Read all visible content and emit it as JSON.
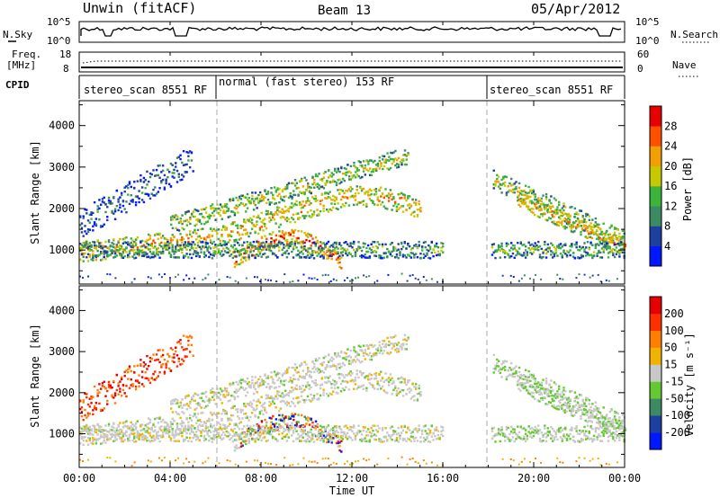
{
  "chart_data": [
    {
      "type": "header",
      "title": "Unwin (fitACF)",
      "beam": "Beam 13",
      "date": "05/Apr/2012"
    },
    {
      "type": "line",
      "panel": "noise",
      "left_label": "N.Sky",
      "right_label": "N.Search",
      "left_ticks": [
        "10^5",
        "10^0"
      ],
      "right_ticks": [
        "10^5",
        "10^0"
      ]
    },
    {
      "type": "line",
      "panel": "freq-nave",
      "left_label_line1": "Freq.",
      "left_label_line2": "[MHz]",
      "right_label": "Nave",
      "left_ticks": [
        "18",
        "8"
      ],
      "right_ticks": [
        "60",
        "0"
      ]
    },
    {
      "type": "annotation",
      "panel": "cpid",
      "label": "CPID",
      "segments": [
        {
          "text": "stereo_scan 8551 RF",
          "start_hour": 0,
          "end_hour": 6
        },
        {
          "text": "normal (fast stereo) 153 RF",
          "start_hour": 6,
          "end_hour": 18
        },
        {
          "text": "stereo_scan 8551 RF",
          "start_hour": 18,
          "end_hour": 24
        }
      ]
    },
    {
      "type": "heatmap",
      "panel": "power",
      "ylabel": "Slant Range [km]",
      "ylim": [
        180,
        4600
      ],
      "yticks": [
        "1000",
        "2000",
        "3000",
        "4000"
      ],
      "xlim": [
        0,
        24
      ],
      "colorbar_label": "Power [dB]",
      "colorbar_ticks": [
        "4",
        "8",
        "12",
        "16",
        "20",
        "24",
        "28"
      ],
      "colors": [
        "#0018ff",
        "#1f3fa0",
        "#3c8a64",
        "#3cb43c",
        "#c8c800",
        "#f0a000",
        "#ff5000",
        "#e60000"
      ]
    },
    {
      "type": "heatmap",
      "panel": "velocity",
      "ylabel": "Slant Range [km]",
      "ylim": [
        180,
        4600
      ],
      "yticks": [
        "1000",
        "2000",
        "3000",
        "4000"
      ],
      "xlim": [
        0,
        24
      ],
      "xticks": [
        "00:00",
        "04:00",
        "08:00",
        "12:00",
        "16:00",
        "20:00",
        "00:00"
      ],
      "xlabel": "Time UT",
      "colorbar_label": "Velocity [m s⁻¹]",
      "colorbar_ticks": [
        "200",
        "100",
        "50",
        "15",
        "-15",
        "-50",
        "-100",
        "-200"
      ],
      "colors": [
        "#0018ff",
        "#1f3fa0",
        "#3c8a64",
        "#64c832",
        "#c8c8c8",
        "#f0b400",
        "#ff8000",
        "#ff3000",
        "#e60000"
      ]
    }
  ]
}
